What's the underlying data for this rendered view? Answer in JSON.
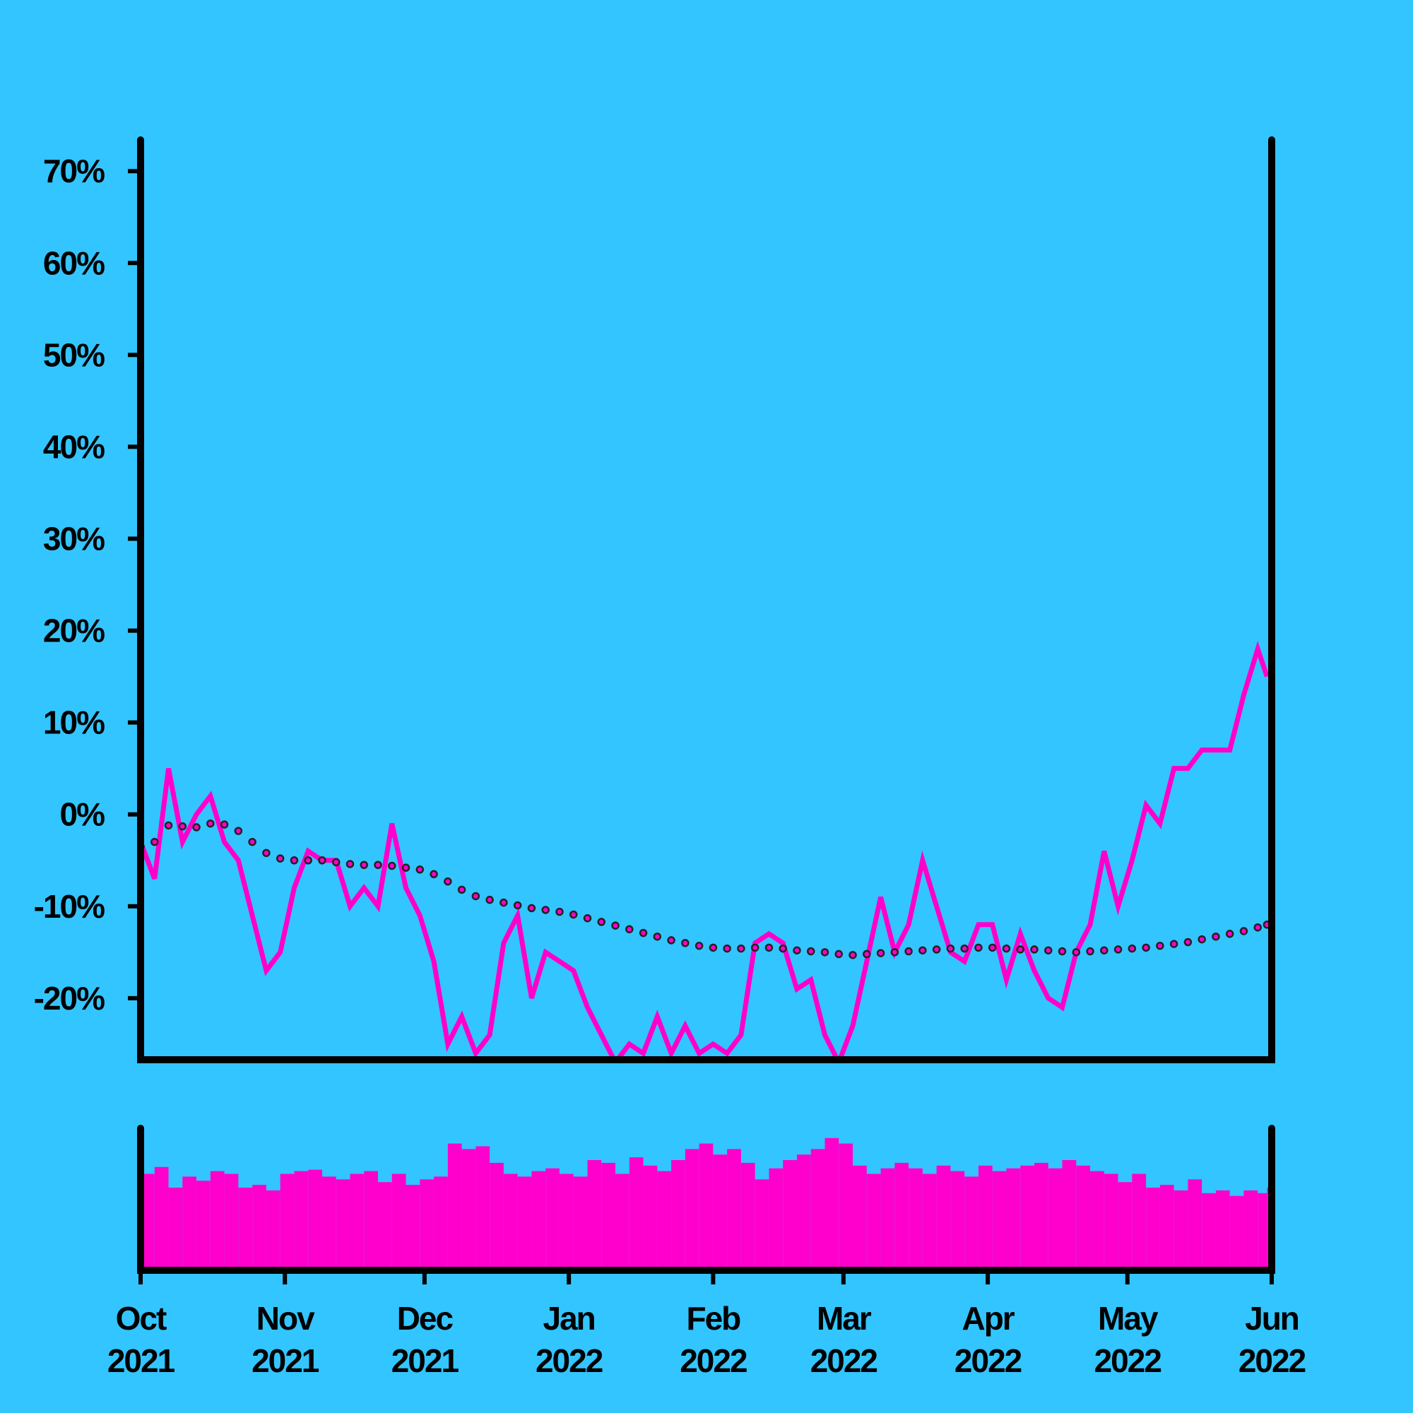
{
  "chart_data": {
    "type": "line",
    "x": [
      0,
      3,
      6,
      9,
      12,
      15,
      18,
      21,
      24,
      27,
      30,
      33,
      36,
      39,
      42,
      45,
      48,
      51,
      54,
      57,
      60,
      63,
      66,
      69,
      72,
      75,
      78,
      81,
      84,
      87,
      90,
      93,
      96,
      99,
      102,
      105,
      108,
      111,
      114,
      117,
      120,
      123,
      126,
      129,
      132,
      135,
      138,
      141,
      144,
      147,
      150,
      153,
      156,
      159,
      162,
      165,
      168,
      171,
      174,
      177,
      180,
      183,
      186,
      189,
      192,
      195,
      198,
      201,
      204,
      207,
      210,
      213,
      216,
      219,
      222,
      225,
      228,
      231,
      234,
      237,
      240,
      242
    ],
    "xlim": [
      0,
      243
    ],
    "xticks": [
      {
        "value": 0,
        "label": "Oct 2021"
      },
      {
        "value": 31,
        "label": "Nov 2021"
      },
      {
        "value": 61,
        "label": "Dec 2021"
      },
      {
        "value": 92,
        "label": "Jan 2022"
      },
      {
        "value": 123,
        "label": "Feb 2022"
      },
      {
        "value": 151,
        "label": "Mar 2022"
      },
      {
        "value": 182,
        "label": "Apr 2022"
      },
      {
        "value": 212,
        "label": "May 2022"
      },
      {
        "value": 243,
        "label": "Jun 2022"
      }
    ],
    "ylim": [
      -26.7,
      73.4
    ],
    "yticks": [
      {
        "value": -20,
        "label": "-20%"
      },
      {
        "value": -10,
        "label": "-10%"
      },
      {
        "value": 0,
        "label": "0%"
      },
      {
        "value": 10,
        "label": "10%"
      },
      {
        "value": 20,
        "label": "20%"
      },
      {
        "value": 30,
        "label": "30%"
      },
      {
        "value": 40,
        "label": "40%"
      },
      {
        "value": 50,
        "label": "50%"
      },
      {
        "value": 60,
        "label": "60%"
      },
      {
        "value": 70,
        "label": "70%"
      }
    ],
    "series": [
      {
        "color": "#ff00cc",
        "style": "solid",
        "values": [
          -3,
          -7,
          5,
          -3,
          0,
          2,
          -3,
          -5,
          -11,
          -17,
          -15,
          -8,
          -4,
          -5,
          -5,
          -10,
          -8,
          -10,
          -1,
          -8,
          -11,
          -16,
          -25,
          -22,
          -26,
          -24,
          -14,
          -11,
          -20,
          -15,
          -16,
          -17,
          -21,
          -24,
          -27,
          -25,
          -26,
          -22,
          -26,
          -23,
          -26,
          -25,
          -26,
          -24,
          -14,
          -13,
          -14,
          -19,
          -18,
          -24,
          -27,
          -23,
          -16,
          -9,
          -15,
          -12,
          -5,
          -10,
          -15,
          -16,
          -12,
          -12,
          -18,
          -13,
          -17,
          -20,
          -21,
          -15,
          -12,
          -4,
          -10,
          -5,
          1,
          -1,
          5,
          5,
          7,
          7,
          7,
          13,
          18,
          15
        ]
      },
      {
        "color": "#222222",
        "style": "dotted",
        "values": [
          -3.5,
          -3,
          -1.2,
          -1.3,
          -1.4,
          -1,
          -1.1,
          -1.8,
          -3,
          -4.2,
          -4.8,
          -5,
          -5,
          -5,
          -5.2,
          -5.4,
          -5.5,
          -5.5,
          -5.6,
          -5.8,
          -6,
          -6.5,
          -7.3,
          -8.2,
          -8.9,
          -9.3,
          -9.6,
          -9.9,
          -10.2,
          -10.4,
          -10.6,
          -10.9,
          -11.3,
          -11.7,
          -12.1,
          -12.5,
          -12.9,
          -13.3,
          -13.7,
          -14,
          -14.3,
          -14.5,
          -14.6,
          -14.6,
          -14.5,
          -14.5,
          -14.6,
          -14.8,
          -14.9,
          -15,
          -15.2,
          -15.3,
          -15.2,
          -15.1,
          -15,
          -14.9,
          -14.8,
          -14.7,
          -14.6,
          -14.6,
          -14.5,
          -14.5,
          -14.6,
          -14.7,
          -14.7,
          -14.8,
          -14.9,
          -15,
          -14.9,
          -14.8,
          -14.7,
          -14.6,
          -14.5,
          -14.3,
          -14.1,
          -13.9,
          -13.6,
          -13.3,
          -13,
          -12.7,
          -12.3,
          -12
        ]
      }
    ],
    "volume": {
      "color": "#ff00cc",
      "ylim": [
        0,
        100
      ],
      "values": [
        70,
        75,
        60,
        68,
        65,
        72,
        70,
        60,
        62,
        58,
        70,
        72,
        73,
        68,
        66,
        70,
        72,
        64,
        70,
        62,
        66,
        68,
        92,
        88,
        90,
        78,
        70,
        68,
        72,
        74,
        70,
        68,
        80,
        78,
        70,
        82,
        76,
        72,
        80,
        88,
        92,
        84,
        88,
        78,
        66,
        74,
        80,
        84,
        88,
        96,
        92,
        76,
        70,
        74,
        78,
        74,
        70,
        76,
        72,
        68,
        76,
        72,
        74,
        76,
        78,
        74,
        80,
        76,
        72,
        70,
        64,
        70,
        60,
        62,
        58,
        66,
        56,
        58,
        54,
        58,
        56,
        60
      ]
    }
  }
}
